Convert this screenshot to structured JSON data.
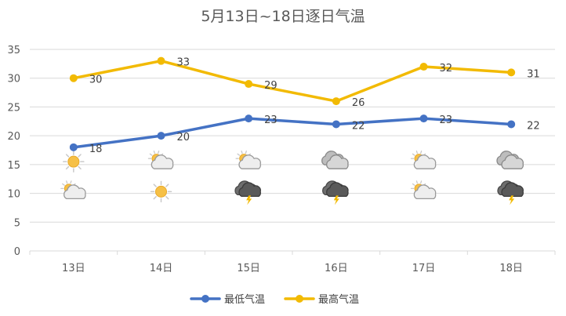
{
  "chart_data": {
    "type": "line",
    "title": "5月13日~18日逐日气温",
    "categories": [
      "13日",
      "14日",
      "15日",
      "16日",
      "17日",
      "18日"
    ],
    "ylim": [
      0,
      35
    ],
    "yticks": [
      0,
      5,
      10,
      15,
      20,
      25,
      30,
      35
    ],
    "grid": true,
    "legend": "bottom",
    "series": [
      {
        "name": "最低气温",
        "values": [
          18,
          20,
          23,
          22,
          23,
          22
        ],
        "color": "#4472C4"
      },
      {
        "name": "最高气温",
        "values": [
          30,
          33,
          29,
          26,
          32,
          31
        ],
        "color": "#F2BA03"
      }
    ],
    "icons_day": [
      "sunny-icon",
      "partly-cloudy-icon",
      "partly-cloudy-icon",
      "cloudy-icon",
      "partly-cloudy-icon",
      "cloudy-icon"
    ],
    "icons_night": [
      "partly-cloudy-icon",
      "sunny-icon",
      "thunderstorm-icon",
      "thunderstorm-icon",
      "partly-cloudy-icon",
      "thunderstorm-icon"
    ],
    "icons_day_level": 15.5,
    "icons_night_level": 10.3
  }
}
